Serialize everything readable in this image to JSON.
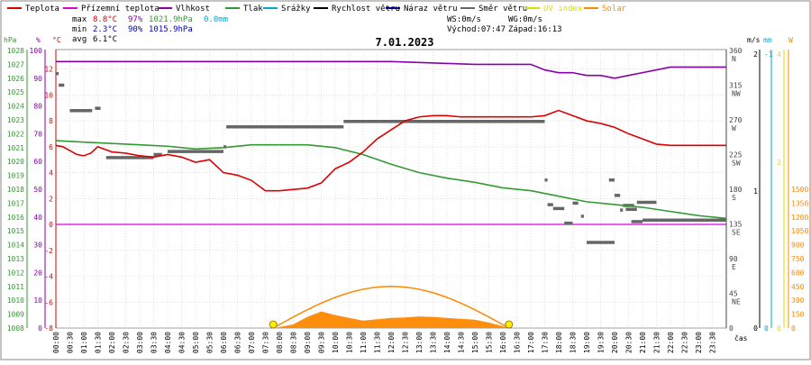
{
  "legend": [
    {
      "label": "Teplota",
      "color": "#dd0000"
    },
    {
      "label": "Přízemní teplota",
      "color": "#dd00dd"
    },
    {
      "label": "Vlhkost",
      "color": "#8800aa"
    },
    {
      "label": "Tlak",
      "color": "#339933"
    },
    {
      "label": "Srážky",
      "color": "#00aacc"
    },
    {
      "label": "Rychlost větru",
      "color": "#000000"
    },
    {
      "label": "Náraz větru",
      "color": "#000088"
    },
    {
      "label": "Směr větru",
      "color": "#666666"
    },
    {
      "label": "UV index",
      "color": "#dddd00"
    },
    {
      "label": "Solar",
      "color": "#ff8800"
    }
  ],
  "stats": {
    "max_label": "max",
    "max_temp": "8.8°C",
    "max_hum": "97%",
    "max_press": "1021.9hPa",
    "max_rain": "0.0mm",
    "min_label": "min",
    "min_temp": "2.3°C",
    "min_hum": "90%",
    "min_press": "1015.9hPa",
    "avg_label": "avg",
    "avg_temp": "6.1°C"
  },
  "wind_info": {
    "ws": "WS:0m/s",
    "wg": "WG:0m/s",
    "sunrise": "Východ:07:47",
    "sunset": "Západ:16:13"
  },
  "date": "7.01.2023",
  "axis_units": {
    "hpa": "hPa",
    "pct": "%",
    "degc": "°C",
    "ms": "m/s",
    "mm": "mm",
    "w": "W",
    "time": "čas"
  },
  "colors": {
    "temp": "#dd0000",
    "ground": "#dd00dd",
    "hum": "#8800aa",
    "press": "#339933",
    "dir": "#666666",
    "solar": "#ff8800",
    "uv": "#dddd00",
    "rain": "#00aacc",
    "grid": "#cccccc"
  },
  "chart_data": {
    "type": "line",
    "title": "7.01.2023",
    "xlabel": "čas",
    "x_ticks": [
      "00:00",
      "00:30",
      "01:00",
      "01:30",
      "02:00",
      "02:30",
      "03:00",
      "03:30",
      "04:00",
      "04:30",
      "05:00",
      "05:30",
      "06:00",
      "06:30",
      "07:00",
      "07:30",
      "08:00",
      "08:30",
      "09:00",
      "09:30",
      "10:00",
      "10:30",
      "11:00",
      "11:30",
      "12:00",
      "12:30",
      "13:00",
      "13:30",
      "14:00",
      "14:30",
      "15:00",
      "15:30",
      "16:00",
      "16:30",
      "17:00",
      "17:30",
      "18:00",
      "18:30",
      "19:00",
      "19:30",
      "20:00",
      "20:30",
      "21:00",
      "21:30",
      "22:00",
      "22:30",
      "23:00",
      "23:30"
    ],
    "axes": {
      "hpa_ticks": [
        "1028",
        "1027",
        "1026",
        "1025",
        "1024",
        "1023",
        "1022",
        "1021",
        "1020",
        "1019",
        "1018",
        "1017",
        "1016",
        "1015",
        "1014",
        "1013",
        "1012",
        "1011",
        "1010",
        "1009",
        "1008"
      ],
      "pct_ticks": [
        "100",
        "90",
        "80",
        "70",
        "60",
        "50",
        "40",
        "30",
        "20",
        "10",
        "0"
      ],
      "temp_ticks": [
        "12",
        "10",
        "8",
        "6",
        "4",
        "2",
        "0",
        "-2",
        "-4",
        "-6",
        "-8"
      ],
      "temp_range": [
        -8,
        13.5
      ],
      "dir_ticks": [
        {
          "deg": 360,
          "card": "N"
        },
        {
          "deg": 315,
          "card": "NW"
        },
        {
          "deg": 270,
          "card": "W"
        },
        {
          "deg": 225,
          "card": "SW"
        },
        {
          "deg": 180,
          "card": "S"
        },
        {
          "deg": 135,
          "card": "SE"
        },
        {
          "deg": 90,
          "card": "E"
        },
        {
          "deg": 45,
          "card": "NE"
        },
        {
          "deg": 0,
          "card": ""
        }
      ],
      "ms_ticks": [
        "2",
        "1",
        "0"
      ],
      "mm_ticks": [
        "-1",
        "0"
      ],
      "uv_ticks": [
        "4",
        "2",
        "0"
      ],
      "solar_ticks": [
        "1500",
        "1350",
        "1200",
        "1050",
        "900",
        "750",
        "600",
        "450",
        "300",
        "150",
        "0"
      ]
    },
    "series": [
      {
        "name": "Teplota",
        "key": "temp",
        "unit": "°C",
        "x": [
          0,
          0.25,
          0.5,
          0.75,
          1,
          1.25,
          1.5,
          2,
          2.5,
          3,
          3.5,
          4,
          4.5,
          5,
          5.5,
          6,
          6.25,
          6.5,
          7,
          7.5,
          8,
          8.5,
          9,
          9.5,
          10,
          10.5,
          11,
          11.5,
          12,
          12.5,
          13,
          13.5,
          14,
          14.5,
          15,
          15.5,
          16,
          16.5,
          17,
          17.5,
          18,
          18.5,
          19,
          19.5,
          20,
          20.5,
          21,
          21.5,
          22,
          22.5,
          23,
          23.5,
          24
        ],
        "y": [
          6.1,
          6.0,
          5.7,
          5.4,
          5.3,
          5.5,
          6.0,
          5.6,
          5.5,
          5.3,
          5.2,
          5.4,
          5.2,
          4.8,
          5.0,
          4.0,
          3.9,
          3.8,
          3.4,
          2.6,
          2.6,
          2.7,
          2.8,
          3.2,
          4.3,
          4.8,
          5.6,
          6.6,
          7.3,
          8.0,
          8.3,
          8.4,
          8.4,
          8.3,
          8.3,
          8.3,
          8.3,
          8.3,
          8.3,
          8.4,
          8.8,
          8.4,
          8.0,
          7.8,
          7.5,
          7.0,
          6.6,
          6.2,
          6.1,
          6.1,
          6.1,
          6.1,
          6.1
        ]
      },
      {
        "name": "Vlhkost",
        "key": "hum",
        "unit": "%",
        "x": [
          0,
          4,
          8,
          12,
          15,
          16,
          17,
          17.5,
          18,
          18.5,
          19,
          19.5,
          20,
          20.5,
          21,
          21.5,
          22,
          22.5,
          23,
          24
        ],
        "y": [
          96,
          96,
          96,
          96,
          95,
          95,
          95,
          93,
          92,
          92,
          91,
          91,
          90,
          91,
          92,
          93,
          94,
          94,
          94,
          94
        ]
      },
      {
        "name": "Tlak",
        "key": "press",
        "unit": "hPa",
        "x": [
          0,
          1,
          2,
          3,
          4,
          5,
          6,
          7,
          8,
          9,
          10,
          11,
          12,
          13,
          14,
          15,
          16,
          17,
          18,
          19,
          20,
          21,
          22,
          23,
          24
        ],
        "y": [
          1021.5,
          1021.4,
          1021.3,
          1021.2,
          1021.1,
          1020.9,
          1021.0,
          1021.2,
          1021.2,
          1021.2,
          1021.0,
          1020.5,
          1019.8,
          1019.2,
          1018.8,
          1018.5,
          1018.1,
          1017.9,
          1017.5,
          1017.1,
          1016.9,
          1016.7,
          1016.4,
          1016.1,
          1015.9
        ]
      },
      {
        "name": "Přízemní teplota",
        "key": "ground",
        "unit": "°C",
        "x": [
          0,
          24
        ],
        "y": [
          0,
          0
        ]
      },
      {
        "name": "Solar",
        "key": "solar",
        "unit": "W",
        "x": [
          7.8,
          8.5,
          9.0,
          9.5,
          10,
          10.5,
          11,
          11.5,
          12,
          12.5,
          13,
          13.5,
          14,
          14.5,
          15,
          15.5,
          16,
          16.2
        ],
        "y": [
          0,
          40,
          120,
          180,
          140,
          110,
          80,
          95,
          110,
          115,
          125,
          120,
          110,
          100,
          90,
          60,
          20,
          0
        ]
      },
      {
        "name": "Směr větru",
        "key": "dir",
        "unit": "°",
        "segments": [
          [
            0.0,
            0.1,
            330
          ],
          [
            0.1,
            0.3,
            315
          ],
          [
            0.5,
            1.3,
            282
          ],
          [
            1.4,
            1.6,
            285
          ],
          [
            1.8,
            3.5,
            221
          ],
          [
            3.5,
            3.8,
            225
          ],
          [
            4.0,
            6.0,
            229
          ],
          [
            6.0,
            6.1,
            235
          ],
          [
            6.1,
            10.3,
            261
          ],
          [
            10.3,
            17.5,
            268
          ],
          [
            17.5,
            17.6,
            192
          ],
          [
            17.6,
            17.8,
            160
          ],
          [
            17.8,
            18.2,
            155
          ],
          [
            18.2,
            18.5,
            136
          ],
          [
            18.5,
            18.7,
            162
          ],
          [
            18.8,
            18.9,
            145
          ],
          [
            19.0,
            20.0,
            111
          ],
          [
            19.8,
            20.0,
            192
          ],
          [
            20.0,
            20.2,
            172
          ],
          [
            20.2,
            20.3,
            153
          ],
          [
            20.4,
            20.8,
            154
          ],
          [
            20.3,
            20.7,
            159
          ],
          [
            20.8,
            21.5,
            163
          ],
          [
            20.6,
            21.0,
            138
          ],
          [
            21.0,
            24.0,
            140
          ]
        ]
      }
    ],
    "sun_path": {
      "rise": 7.78,
      "set": 16.22,
      "peak_w": 450
    }
  }
}
